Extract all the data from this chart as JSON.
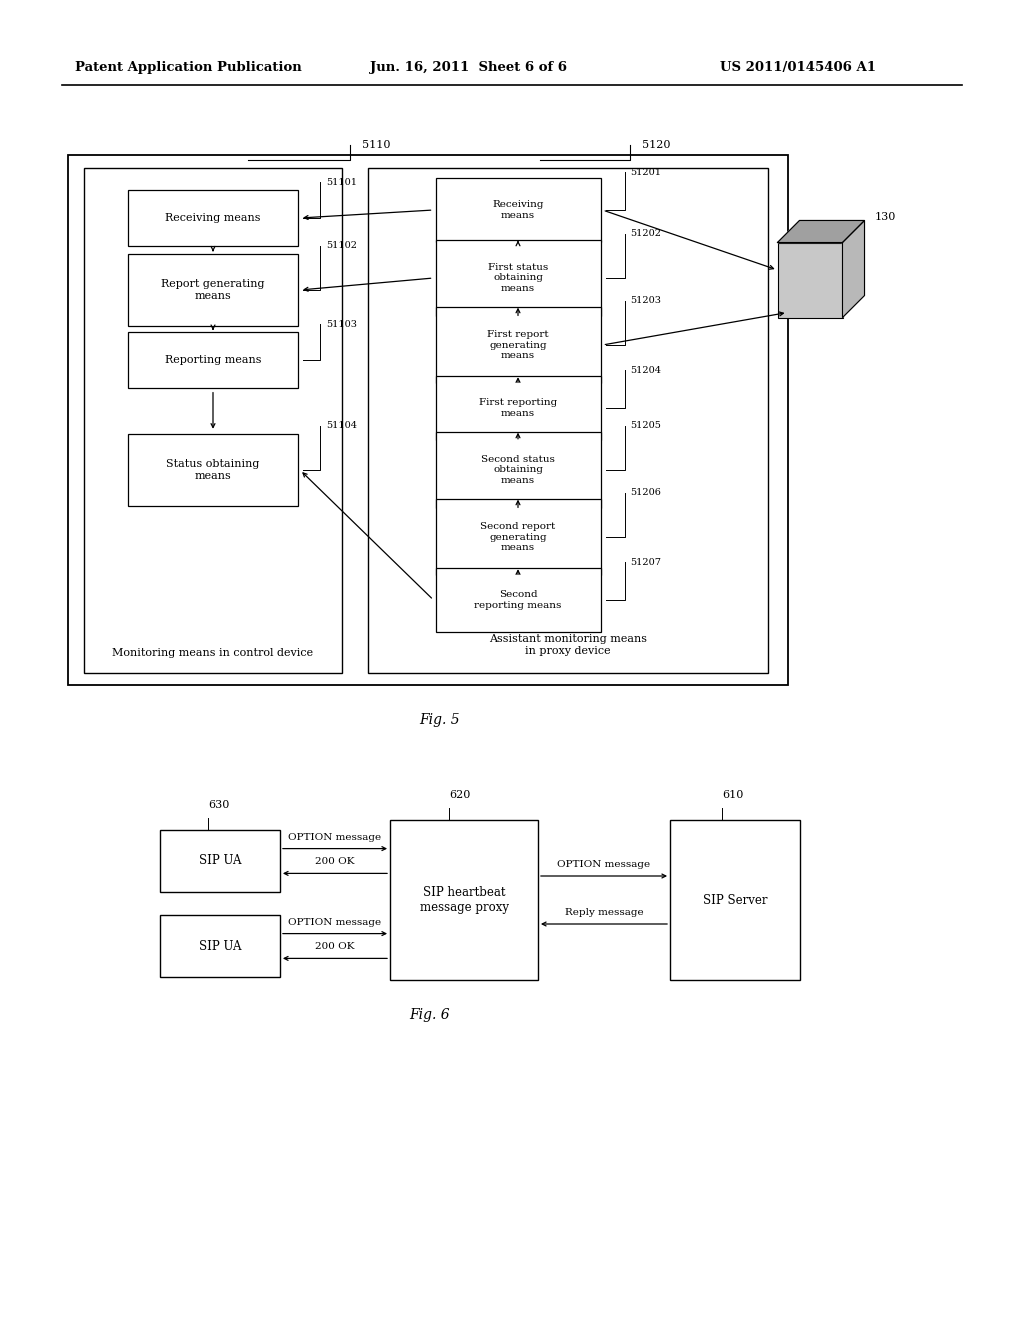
{
  "bg_color": "#ffffff",
  "header_text": "Patent Application Publication",
  "header_date": "Jun. 16, 2011  Sheet 6 of 6",
  "header_patent": "US 2011/0145406 A1",
  "fig5_label": "Fig. 5",
  "fig6_label": "Fig. 6",
  "fig5_title_left": "Monitoring means in control device",
  "fig5_title_right": "Assistant monitoring means\nin proxy device",
  "left_box_label": "5110",
  "right_box_label": "5120",
  "left_boxes": [
    {
      "id": "51101",
      "label": "Receiving means",
      "bh": 0.042
    },
    {
      "id": "51102",
      "label": "Report generating\nmeans",
      "bh": 0.055
    },
    {
      "id": "51103",
      "label": "Reporting means",
      "bh": 0.042
    },
    {
      "id": "51104",
      "label": "Status obtaining\nmeans",
      "bh": 0.055
    }
  ],
  "right_boxes": [
    {
      "id": "51201",
      "label": "Receiving\nmeans",
      "bh": 0.048
    },
    {
      "id": "51202",
      "label": "First status\nobtaining\nmeans",
      "bh": 0.058
    },
    {
      "id": "51203",
      "label": "First report\ngenerating\nmeans",
      "bh": 0.058
    },
    {
      "id": "51204",
      "label": "First reporting\nmeans",
      "bh": 0.048
    },
    {
      "id": "51205",
      "label": "Second status\nobtaining\nmeans",
      "bh": 0.058
    },
    {
      "id": "51206",
      "label": "Second report\ngenerating\nmeans",
      "bh": 0.058
    },
    {
      "id": "51207",
      "label": "Second\nreporting means",
      "bh": 0.048
    }
  ]
}
